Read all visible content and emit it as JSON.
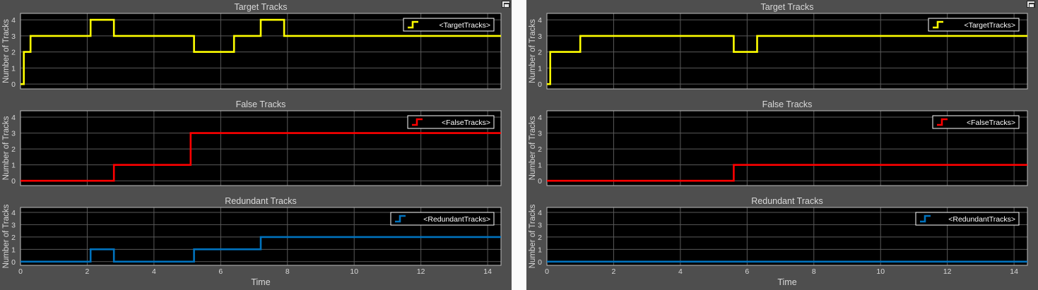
{
  "colors": {
    "panel_bg": "#4e4e4e",
    "axes_bg": "#000000",
    "axis_text": "#d9d9d9",
    "grid": "#5a5a5a",
    "legend_bg": "#000000",
    "legend_border": "#ffffff",
    "target": "#ffff00",
    "false": "#ff0000",
    "redundant": "#0072bd"
  },
  "icons": {
    "undock": "undock-icon"
  },
  "chart_data": [
    {
      "panel": "left",
      "type": "line",
      "xlabel": "Time",
      "xlim": [
        0,
        14.4
      ],
      "xticks": [
        0,
        2,
        4,
        6,
        8,
        10,
        12,
        14
      ],
      "subplots": [
        {
          "key": "target",
          "title": "Target Tracks",
          "ylabel": "Number of Tracks",
          "ylim": [
            -0.3,
            4.4
          ],
          "yticks": [
            0,
            1,
            2,
            3,
            4
          ],
          "series": [
            {
              "name": "<TargetTracks>",
              "color": "#ffff00",
              "step": "post",
              "x": [
                0,
                0.1,
                0.3,
                2.1,
                2.8,
                5.2,
                6.4,
                7.2,
                7.9,
                14.4
              ],
              "values": [
                0,
                2,
                3,
                4,
                3,
                2,
                3,
                4,
                3,
                3
              ]
            }
          ]
        },
        {
          "key": "false",
          "title": "False Tracks",
          "ylabel": "Number of Tracks",
          "ylim": [
            -0.3,
            4.4
          ],
          "yticks": [
            0,
            1,
            2,
            3,
            4
          ],
          "series": [
            {
              "name": "<FalseTracks>",
              "color": "#ff0000",
              "step": "post",
              "x": [
                0,
                2.8,
                5.1,
                14.4
              ],
              "values": [
                0,
                1,
                3,
                3
              ]
            }
          ]
        },
        {
          "key": "redundant",
          "title": "Redundant Tracks",
          "ylabel": "Number of Tracks",
          "ylim": [
            -0.3,
            4.4
          ],
          "yticks": [
            0,
            1,
            2,
            3,
            4
          ],
          "series": [
            {
              "name": "<RedundantTracks>",
              "color": "#0072bd",
              "step": "post",
              "x": [
                0,
                2.1,
                2.8,
                5.2,
                7.2,
                14.4
              ],
              "values": [
                0,
                1,
                0,
                1,
                2,
                2
              ]
            }
          ]
        }
      ]
    },
    {
      "panel": "right",
      "type": "line",
      "xlabel": "Time",
      "xlim": [
        0,
        14.4
      ],
      "xticks": [
        0,
        2,
        4,
        6,
        8,
        10,
        12,
        14
      ],
      "subplots": [
        {
          "key": "target",
          "title": "Target Tracks",
          "ylabel": "Number of Tracks",
          "ylim": [
            -0.3,
            4.4
          ],
          "yticks": [
            0,
            1,
            2,
            3,
            4
          ],
          "series": [
            {
              "name": "<TargetTracks>",
              "color": "#ffff00",
              "step": "post",
              "x": [
                0,
                0.1,
                1.0,
                5.6,
                6.3,
                14.4
              ],
              "values": [
                0,
                2,
                3,
                2,
                3,
                3
              ]
            }
          ]
        },
        {
          "key": "false",
          "title": "False Tracks",
          "ylabel": "Number of Tracks",
          "ylim": [
            -0.3,
            4.4
          ],
          "yticks": [
            0,
            1,
            2,
            3,
            4
          ],
          "series": [
            {
              "name": "<FalseTracks>",
              "color": "#ff0000",
              "step": "post",
              "x": [
                0,
                5.6,
                14.4
              ],
              "values": [
                0,
                1,
                1
              ]
            }
          ]
        },
        {
          "key": "redundant",
          "title": "Redundant Tracks",
          "ylabel": "Number of Tracks",
          "ylim": [
            -0.3,
            4.4
          ],
          "yticks": [
            0,
            1,
            2,
            3,
            4
          ],
          "series": [
            {
              "name": "<RedundantTracks>",
              "color": "#0072bd",
              "step": "post",
              "x": [
                0,
                14.4
              ],
              "values": [
                0,
                0
              ]
            }
          ]
        }
      ]
    }
  ]
}
